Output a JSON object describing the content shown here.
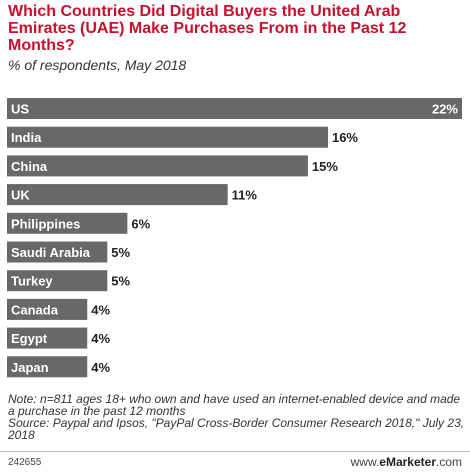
{
  "header": {
    "title": "Which Countries Did Digital Buyers the United Arab Emirates (UAE) Make Purchases From in the Past 12 Months?",
    "subtitle": "% of respondents, May 2018"
  },
  "colors": {
    "title": "#c8102e",
    "bar": "#686868",
    "bar_label": "#ffffff",
    "value_label": "#222222"
  },
  "chart_data": {
    "type": "bar",
    "orientation": "horizontal",
    "categories": [
      "US",
      "India",
      "China",
      "UK",
      "Philippines",
      "Saudi Arabia",
      "Turkey",
      "Canada",
      "Egypt",
      "Japan"
    ],
    "values": [
      22,
      16,
      15,
      11,
      6,
      5,
      5,
      4,
      4,
      4
    ],
    "value_labels": [
      "22%",
      "16%",
      "15%",
      "11%",
      "6%",
      "5%",
      "5%",
      "4%",
      "4%",
      "4%"
    ],
    "unit": "%",
    "xlim": [
      0,
      22
    ],
    "grid": false,
    "legend": "none"
  },
  "footer": {
    "note": "Note: n=811 ages 18+ who own and have used an internet-enabled device and made a purchase in the past 12 months",
    "source": "Source: Paypal and Ipsos, \"PayPal Cross-Border Consumer Research 2018,\" July 23, 2018",
    "chart_id": "242655",
    "brand_prefix": "www.",
    "brand_name": "eMarketer",
    "brand_suffix": ".com"
  }
}
